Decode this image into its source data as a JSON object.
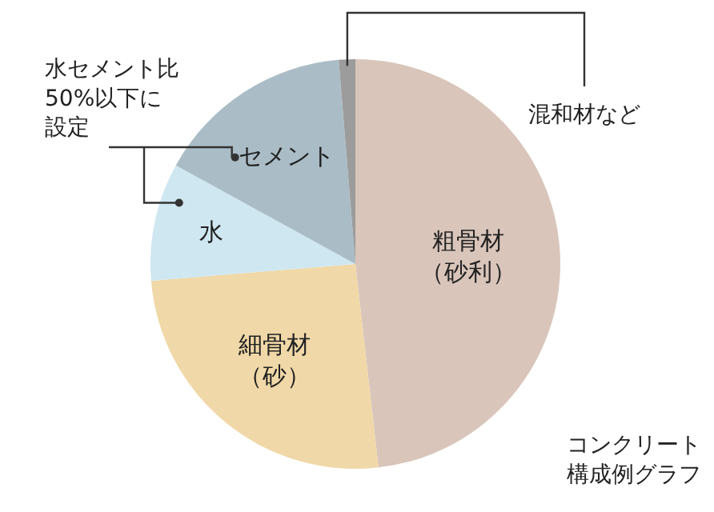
{
  "chart_data": {
    "type": "pie",
    "categories": [
      "粗骨材（砂利）",
      "細骨材（砂）",
      "水",
      "セメント",
      "混和材など"
    ],
    "values": [
      48.2,
      25.5,
      9.3,
      15.7,
      1.3
    ],
    "colors": [
      "#d9c5ba",
      "#f0d8a8",
      "#cfe7f1",
      "#aabdc7",
      "#9c9c9c"
    ],
    "annotations": [
      "水セメント比50%以下に設定",
      "コンクリート構成例グラフ"
    ]
  }
}
